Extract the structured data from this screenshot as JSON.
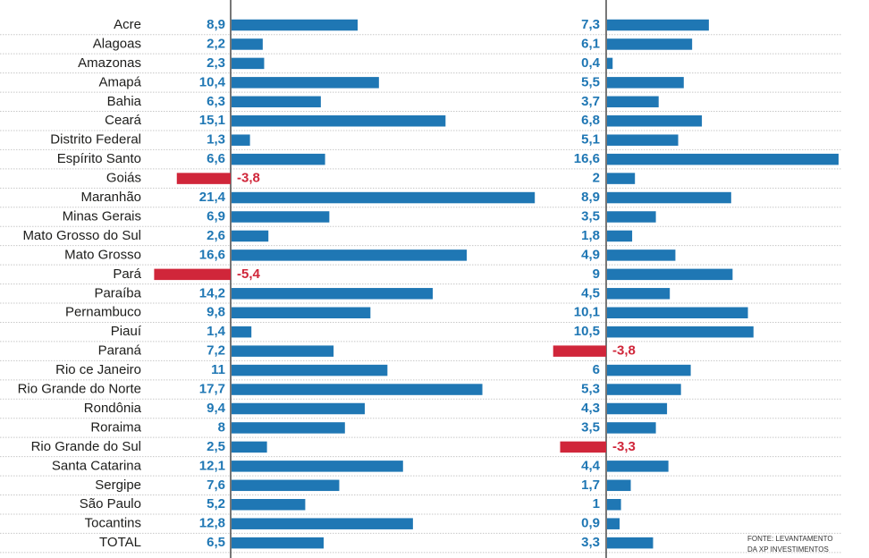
{
  "chart_data": [
    {
      "type": "bar",
      "orientation": "horizontal",
      "categories": [
        "Acre",
        "Alagoas",
        "Amazonas",
        "Amapá",
        "Bahia",
        "Ceará",
        "Distrito Federal",
        "Espírito Santo",
        "Goiás",
        "Maranhão",
        "Minas Gerais",
        "Mato Grosso do Sul",
        "Mato Grosso",
        "Pará",
        "Paraíba",
        "Pernambuco",
        "Piauí",
        "Paraná",
        "Rio ce Janeiro",
        "Rio Grande do Norte",
        "Rondônia",
        "Roraima",
        "Rio Grande do Sul",
        "Santa Catarina",
        "Sergipe",
        "São Paulo",
        "Tocantins",
        "TOTAL"
      ],
      "values": [
        8.9,
        2.2,
        2.3,
        10.4,
        6.3,
        15.1,
        1.3,
        6.6,
        -3.8,
        21.4,
        6.9,
        2.6,
        16.6,
        -5.4,
        14.2,
        9.8,
        1.4,
        7.2,
        11,
        17.7,
        9.4,
        8,
        2.5,
        12.1,
        7.6,
        5.2,
        12.8,
        6.5
      ],
      "value_labels": [
        "8,9",
        "2,2",
        "2,3",
        "10,4",
        "6,3",
        "15,1",
        "1,3",
        "6,6",
        "-3,8",
        "21,4",
        "6,9",
        "2,6",
        "16,6",
        "-5,4",
        "14,2",
        "9,8",
        "1,4",
        "7,2",
        "11",
        "17,7",
        "9,4",
        "8",
        "2,5",
        "12,1",
        "7,6",
        "5,2",
        "12,8",
        "6,5"
      ],
      "grid": true
    },
    {
      "type": "bar",
      "orientation": "horizontal",
      "categories": [
        "Acre",
        "Alagoas",
        "Amazonas",
        "Amapá",
        "Bahia",
        "Ceará",
        "Distrito Federal",
        "Espírito Santo",
        "Goiás",
        "Maranhão",
        "Minas Gerais",
        "Mato Grosso do Sul",
        "Mato Grosso",
        "Pará",
        "Paraíba",
        "Pernambuco",
        "Piauí",
        "Paraná",
        "Rio ce Janeiro",
        "Rio Grande do Norte",
        "Rondônia",
        "Roraima",
        "Rio Grande do Sul",
        "Santa Catarina",
        "Sergipe",
        "São Paulo",
        "Tocantins",
        "TOTAL"
      ],
      "values": [
        7.3,
        6.1,
        0.4,
        5.5,
        3.7,
        6.8,
        5.1,
        16.6,
        2,
        8.9,
        3.5,
        1.8,
        4.9,
        9,
        4.5,
        10.1,
        10.5,
        -3.8,
        6,
        5.3,
        4.3,
        3.5,
        -3.3,
        4.4,
        1.7,
        1,
        0.9,
        3.3
      ],
      "value_labels": [
        "7,3",
        "6,1",
        "0,4",
        "5,5",
        "3,7",
        "6,8",
        "5,1",
        "16,6",
        "2",
        "8,9",
        "3,5",
        "1,8",
        "4,9",
        "9",
        "4,5",
        "10,1",
        "10,5",
        "-3,8",
        "6",
        "5,3",
        "4,3",
        "3,5",
        "-3,3",
        "4,4",
        "1,7",
        "1",
        "0,9",
        "3,3"
      ],
      "grid": true
    }
  ],
  "source_note": [
    "FONTE: LEVANTAMENTO",
    "DA XP INVESTIMENTOS"
  ],
  "colors": {
    "positive": "#1f77b4",
    "negative": "#d0263a",
    "positive_text": "#1f77b4",
    "negative_text": "#d0263a",
    "label": "#1d1d1b",
    "grid": "#c8c8c8",
    "axis": "#555555"
  }
}
